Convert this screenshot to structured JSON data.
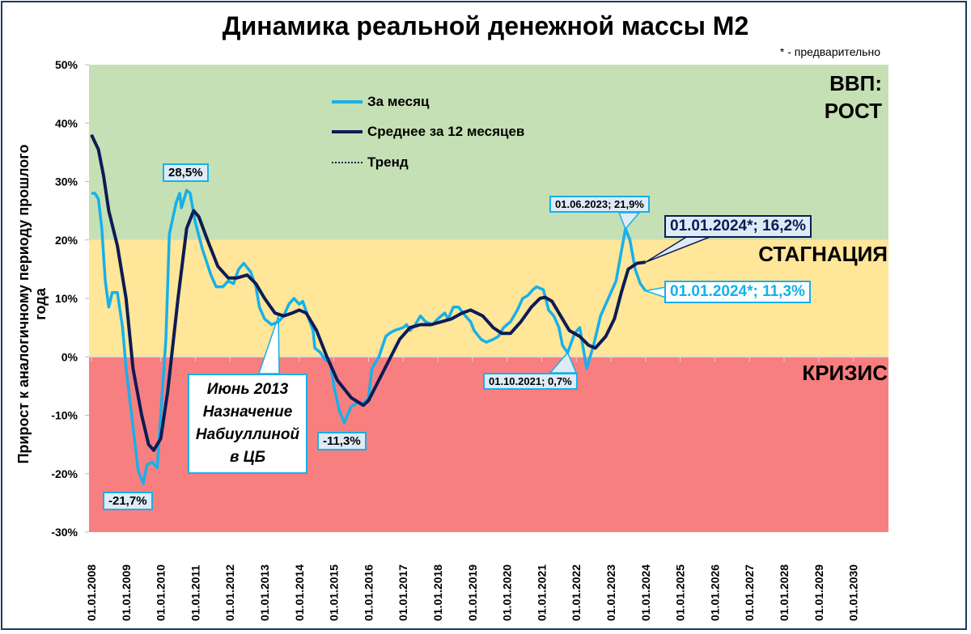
{
  "chart_data": {
    "type": "line",
    "title": "Динамика реальной денежной массы М2",
    "note": "* - предварительно",
    "ylabel": "Прирост к аналогичному периоду прошлого года",
    "xlabel": "",
    "ylim": [
      -30,
      50
    ],
    "yticks": [
      "-30%",
      "-20%",
      "-10%",
      "0%",
      "10%",
      "20%",
      "30%",
      "40%",
      "50%"
    ],
    "ytick_values": [
      -30,
      -20,
      -10,
      0,
      10,
      20,
      30,
      40,
      50
    ],
    "xticks": [
      "01.01.2008",
      "01.01.2009",
      "01.01.2010",
      "01.01.2011",
      "01.01.2012",
      "01.01.2013",
      "01.01.2014",
      "01.01.2015",
      "01.01.2016",
      "01.01.2017",
      "01.01.2018",
      "01.01.2019",
      "01.01.2020",
      "01.01.2021",
      "01.01.2022",
      "01.01.2023",
      "01.01.2024",
      "01.01.2025",
      "01.01.2026",
      "01.01.2027",
      "01.01.2028",
      "01.01.2029",
      "01.01.2030"
    ],
    "xlim": [
      2008,
      2031.05
    ],
    "zones": [
      {
        "label": "ВВП:\nРОСТ",
        "from": 20,
        "to": 50,
        "color": "#c5e0b4"
      },
      {
        "label": "СТАГНАЦИЯ",
        "from": 0,
        "to": 20,
        "color": "#ffe699"
      },
      {
        "label": "КРИЗИС",
        "from": -30,
        "to": 0,
        "color": "#f87f7f"
      }
    ],
    "legend": [
      "За месяц",
      "Среднее за 12 месяцев",
      "Тренд"
    ],
    "legend_position": "top-center",
    "series": [
      {
        "name": "За месяц",
        "color": "#16b0ea",
        "x": [
          2008.0,
          2008.1,
          2008.2,
          2008.3,
          2008.4,
          2008.5,
          2008.6,
          2008.75,
          2008.9,
          2009.0,
          2009.2,
          2009.35,
          2009.5,
          2009.6,
          2009.75,
          2009.9,
          2010.0,
          2010.15,
          2010.25,
          2010.45,
          2010.55,
          2010.6,
          2010.75,
          2010.85,
          2011.0,
          2011.2,
          2011.45,
          2011.6,
          2011.8,
          2011.95,
          2012.1,
          2012.25,
          2012.4,
          2012.6,
          2012.75,
          2012.85,
          2013.0,
          2013.2,
          2013.4,
          2013.55,
          2013.7,
          2013.85,
          2014.0,
          2014.1,
          2014.25,
          2014.4,
          2014.45,
          2014.6,
          2014.75,
          2014.9,
          2015.0,
          2015.15,
          2015.3,
          2015.5,
          2015.7,
          2015.85,
          2016.0,
          2016.1,
          2016.3,
          2016.5,
          2016.6,
          2016.75,
          2017.0,
          2017.1,
          2017.2,
          2017.35,
          2017.5,
          2017.65,
          2017.85,
          2018.0,
          2018.2,
          2018.3,
          2018.45,
          2018.6,
          2018.8,
          2018.95,
          2019.05,
          2019.25,
          2019.4,
          2019.6,
          2019.75,
          2019.9,
          2020.1,
          2020.3,
          2020.45,
          2020.6,
          2020.75,
          2020.85,
          2021.05,
          2021.2,
          2021.35,
          2021.5,
          2021.6,
          2021.75,
          2021.95,
          2022.1,
          2022.3,
          2022.5,
          2022.7,
          2022.85,
          2023.0,
          2023.15,
          2023.3,
          2023.42,
          2023.55,
          2023.7,
          2023.85,
          2024.0
        ],
        "values": [
          28,
          28,
          27,
          22,
          13,
          8.5,
          11,
          11,
          5,
          -2,
          -12,
          -19.5,
          -21.7,
          -18.5,
          -18,
          -19,
          -10,
          3,
          21,
          26.5,
          28,
          25.5,
          28.5,
          28,
          23,
          18.5,
          14,
          12,
          12,
          13,
          12.5,
          15,
          16,
          14.5,
          12,
          8.5,
          6.5,
          5.5,
          6,
          7,
          9,
          10,
          9,
          9.5,
          7,
          4.5,
          1.5,
          0.8,
          -0.5,
          -1,
          -5,
          -9,
          -11.3,
          -8.5,
          -7.8,
          -8,
          -7,
          -2,
          0,
          3.5,
          4,
          4.5,
          5,
          5.5,
          4.5,
          5.5,
          7,
          6,
          5.5,
          6.5,
          7.5,
          6.5,
          8.5,
          8.5,
          7,
          6,
          4.5,
          3,
          2.5,
          3,
          3.5,
          5,
          6,
          8,
          10,
          10.5,
          11.5,
          12,
          11.5,
          8,
          7,
          5,
          2,
          0.7,
          4,
          5,
          -2,
          2,
          7,
          9,
          11,
          13,
          18,
          21.9,
          20,
          15,
          12.5,
          11.3
        ]
      },
      {
        "name": "Среднее за 12 месяцев",
        "color": "#0d1b55",
        "x": [
          2008.0,
          2008.2,
          2008.35,
          2008.5,
          2008.75,
          2009.0,
          2009.2,
          2009.45,
          2009.65,
          2009.8,
          2010.0,
          2010.2,
          2010.5,
          2010.75,
          2010.95,
          2011.1,
          2011.35,
          2011.65,
          2011.95,
          2012.2,
          2012.5,
          2012.75,
          2013.0,
          2013.3,
          2013.55,
          2013.8,
          2014.0,
          2014.2,
          2014.5,
          2014.8,
          2015.1,
          2015.5,
          2015.85,
          2016.0,
          2016.3,
          2016.6,
          2016.9,
          2017.2,
          2017.5,
          2017.8,
          2018.1,
          2018.4,
          2018.7,
          2018.95,
          2019.3,
          2019.6,
          2019.85,
          2020.1,
          2020.4,
          2020.7,
          2020.95,
          2021.1,
          2021.3,
          2021.55,
          2021.8,
          2022.1,
          2022.35,
          2022.55,
          2022.85,
          2023.1,
          2023.3,
          2023.5,
          2023.75,
          2024.0
        ],
        "values": [
          38,
          35.5,
          31,
          25,
          19,
          10,
          -2,
          -10,
          -15,
          -16,
          -14,
          -6,
          10,
          22,
          25,
          24,
          20,
          15.5,
          13.5,
          13.5,
          14,
          12.5,
          10,
          7.5,
          7,
          7.5,
          8,
          7.5,
          4.5,
          0,
          -4,
          -7,
          -8.3,
          -7.5,
          -4,
          -0.5,
          3,
          5,
          5.5,
          5.5,
          6,
          6.5,
          7.5,
          8,
          7,
          5,
          4,
          4,
          6,
          8.5,
          10,
          10.2,
          9.5,
          7,
          4.5,
          3.5,
          2,
          1.5,
          3.5,
          6.5,
          11,
          15,
          16,
          16.2
        ]
      },
      {
        "name": "Тренд",
        "color": "#0d1b55",
        "x": [],
        "values": []
      }
    ],
    "annotations": {
      "peak_2010": "28,5%",
      "low_2009": "-21,7%",
      "low_2015": "-11,3%",
      "nabiullina": [
        "Июнь 2013",
        "Назначение",
        "Набиуллиной",
        "в ЦБ"
      ],
      "low_2021": "01.10.2021; 0,7%",
      "peak_2023": "01.06.2023; 21,9%",
      "avg_2024": "01.01.2024*; 16,2%",
      "month_2024": "01.01.2024*; 11,3%"
    }
  }
}
